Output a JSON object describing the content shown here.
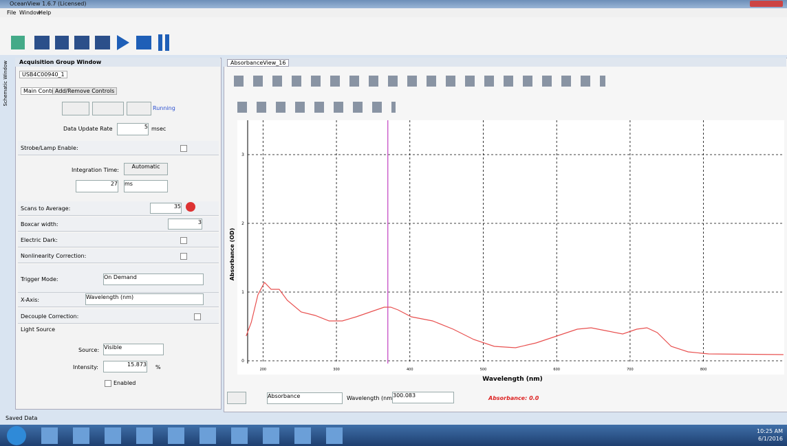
{
  "window": {
    "title": "OceanView 1.6.7 (Licensed)",
    "menu": [
      "File",
      "Window",
      "Help"
    ],
    "side_tab": "Schematic Window"
  },
  "acquisition": {
    "title": "Acquisition Group Window",
    "device_tab": "USB4C00940_1",
    "tabs": [
      "Main Controls",
      "Add/Remove Controls"
    ],
    "status": "Running",
    "update_rate": {
      "label": "Data Update Rate",
      "value": "5",
      "unit": "msec"
    },
    "strobe": "Strobe/Lamp Enable:",
    "integration": {
      "label": "Integration Time:",
      "button": "Automatic",
      "value": "27",
      "unit": "ms"
    },
    "scans": {
      "label": "Scans to Average:",
      "value": "35"
    },
    "boxcar": {
      "label": "Boxcar width:",
      "value": "3"
    },
    "dark": "Electric Dark:",
    "nonlinearity": "Nonlinearity Correction:",
    "trigger": {
      "label": "Trigger Mode:",
      "value": "On Demand"
    },
    "xaxis": {
      "label": "X-Axis:",
      "value": "Wavelength (nm)"
    },
    "decouple": "Decouple Correction:",
    "light": {
      "title": "Light Source",
      "source_label": "Source:",
      "source": "Visible",
      "intensity_label": "Intensity:",
      "intensity": "15.873",
      "unit": "%",
      "enabled": "Enabled"
    }
  },
  "view": {
    "tab": "AbsorbanceView_16",
    "mode": "Absorbance",
    "wavelength_label": "Wavelength (nm)",
    "wavelength_value": "300.083",
    "readout": "Absorbance: 0.0"
  },
  "chart_data": {
    "type": "line",
    "x_label": "Wavelength (nm)",
    "y_label": "Absorbance (OD)",
    "x": [
      177,
      184,
      193,
      202,
      211,
      222,
      233,
      252,
      271,
      290,
      308,
      327,
      346,
      365,
      374,
      384,
      402,
      431,
      459,
      487,
      515,
      544,
      572,
      600,
      628,
      647,
      666,
      690,
      709,
      723,
      737,
      756,
      779,
      807,
      909
    ],
    "series": [
      {
        "color": "#e8504f",
        "values": [
          0.36,
          0.56,
          0.96,
          1.14,
          1.04,
          1.04,
          0.88,
          0.71,
          0.66,
          0.58,
          0.58,
          0.64,
          0.71,
          0.78,
          0.78,
          0.74,
          0.64,
          0.58,
          0.46,
          0.31,
          0.21,
          0.19,
          0.26,
          0.36,
          0.46,
          0.48,
          0.44,
          0.39,
          0.46,
          0.48,
          0.41,
          0.21,
          0.13,
          0.1,
          0.09
        ]
      }
    ],
    "xlim": [
      165,
      910
    ],
    "ylim": [
      -0.2,
      3.5
    ],
    "xticks": [
      200,
      300,
      400,
      500,
      600,
      700,
      800
    ],
    "yticks": [
      0,
      1,
      2,
      3
    ],
    "grid": true,
    "cursor_x": 370,
    "cursor_color": "#c040c0"
  },
  "status": "Saved Data",
  "taskbar": {
    "time": "10:25 AM",
    "date": "6/1/2016"
  }
}
